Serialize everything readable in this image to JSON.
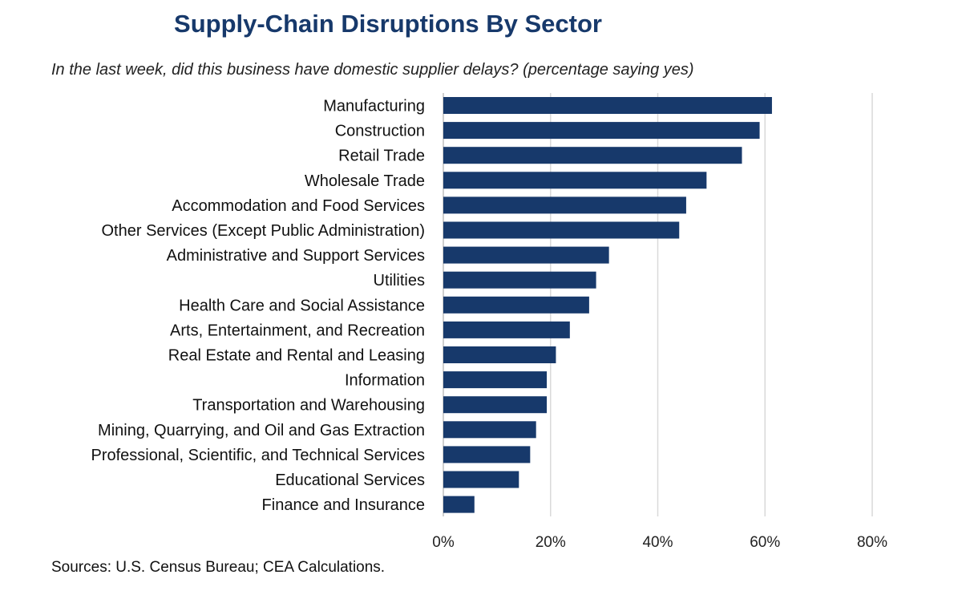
{
  "colors": {
    "bar": "#17396b",
    "title": "#17396b",
    "grid": "#d9d9d9",
    "axis": "#bfbfbf"
  },
  "chart_data": {
    "type": "bar",
    "orientation": "horizontal",
    "title": "Supply-Chain Disruptions By Sector",
    "subtitle": "In the last week, did this business have domestic supplier delays? (percentage saying yes)",
    "source": "Sources: U.S. Census Bureau; CEA Calculations.",
    "categories": [
      "Manufacturing",
      "Construction",
      "Retail Trade",
      "Wholesale Trade",
      "Accommodation and Food Services",
      "Other Services (Except Public Administration)",
      "Administrative and Support Services",
      "Utilities",
      "Health Care and Social Assistance",
      "Arts, Entertainment, and Recreation",
      "Real Estate and Rental and Leasing",
      "Information",
      "Transportation and Warehousing",
      "Mining, Quarrying, and Oil and Gas Extraction",
      "Professional, Scientific, and Technical Services",
      "Educational Services",
      "Finance and Insurance"
    ],
    "values": [
      61.3,
      59,
      55.7,
      49.1,
      45.3,
      44,
      30.9,
      28.5,
      27.2,
      23.6,
      21,
      19.3,
      19.3,
      17.3,
      16.2,
      14.1,
      5.8
    ],
    "xlim": [
      0,
      80
    ],
    "xticks": [
      0,
      20,
      40,
      60,
      80
    ],
    "xtick_labels": [
      "0%",
      "20%",
      "40%",
      "60%",
      "80%"
    ],
    "grid": "vertical",
    "legend": "none"
  }
}
